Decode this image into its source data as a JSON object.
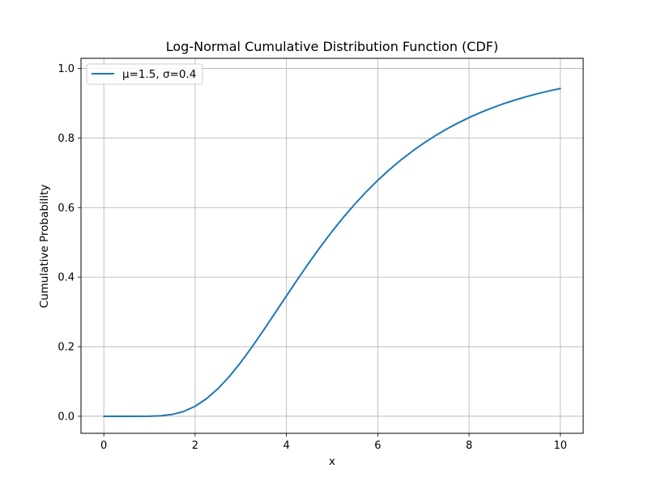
{
  "chart_data": {
    "type": "line",
    "title": "Log-Normal Cumulative Distribution Function (CDF)",
    "xlabel": "x",
    "ylabel": "Cumulative Probability",
    "xlim": [
      -0.5,
      10.5
    ],
    "ylim": [
      -0.049,
      1.029
    ],
    "xticks": [
      0,
      2,
      4,
      6,
      8,
      10
    ],
    "xtick_labels": [
      "0",
      "2",
      "4",
      "6",
      "8",
      "10"
    ],
    "yticks": [
      0.0,
      0.2,
      0.4,
      0.6,
      0.8,
      1.0
    ],
    "ytick_labels": [
      "0.0",
      "0.2",
      "0.4",
      "0.6",
      "0.8",
      "1.0"
    ],
    "grid": true,
    "legend_position": "upper-left",
    "series": [
      {
        "name": "μ=1.5, σ=0.4",
        "color": "#1f77b4",
        "x": [
          0,
          0.5,
          1.0,
          1.25,
          1.5,
          1.75,
          2.0,
          2.25,
          2.5,
          2.75,
          3.0,
          3.25,
          3.5,
          3.75,
          4.0,
          4.25,
          4.5,
          4.75,
          5.0,
          5.25,
          5.5,
          5.75,
          6.0,
          6.25,
          6.5,
          6.75,
          7.0,
          7.25,
          7.5,
          7.75,
          8.0,
          8.25,
          8.5,
          8.75,
          9.0,
          9.25,
          9.5,
          9.75,
          10.0
        ],
        "y": [
          0.0,
          0.0,
          0.0001,
          0.0013,
          0.0053,
          0.0139,
          0.0287,
          0.0505,
          0.0793,
          0.1145,
          0.1551,
          0.2,
          0.2476,
          0.2968,
          0.3462,
          0.3951,
          0.4425,
          0.4882,
          0.5315,
          0.5722,
          0.6102,
          0.6456,
          0.6782,
          0.7083,
          0.736,
          0.7613,
          0.7845,
          0.8057,
          0.825,
          0.8426,
          0.8586,
          0.8731,
          0.8862,
          0.8981,
          0.9088,
          0.9185,
          0.9273,
          0.9351,
          0.9422
        ]
      }
    ]
  }
}
